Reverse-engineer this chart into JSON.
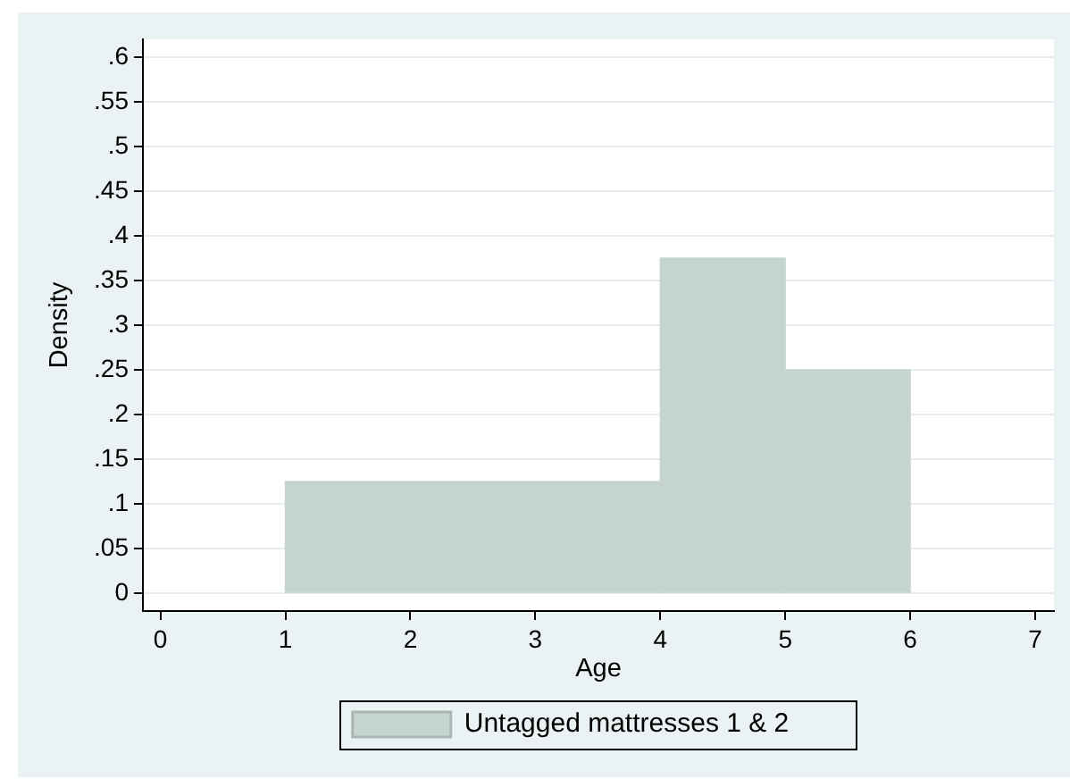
{
  "chart_data": {
    "type": "histogram",
    "xlabel": "Age",
    "ylabel": "Density",
    "bins": [
      1,
      4,
      5,
      6
    ],
    "series": [
      {
        "name": "Untagged mattresses 1 & 2",
        "color": "#c6d4cf",
        "values": [
          0.125,
          0.375,
          0.25
        ]
      }
    ],
    "xlim": [
      -0.14,
      7.15
    ],
    "ylim": [
      -0.02,
      0.62
    ],
    "xticks": [
      0,
      1,
      2,
      3,
      4,
      5,
      6,
      7
    ],
    "yticks": [
      0,
      {
        "value": 0.05,
        "label": ".05"
      },
      {
        "value": 0.1,
        "label": ".1"
      },
      {
        "value": 0.15,
        "label": ".15"
      },
      {
        "value": 0.2,
        "label": ".2"
      },
      {
        "value": 0.25,
        "label": ".25"
      },
      {
        "value": 0.3,
        "label": ".3"
      },
      {
        "value": 0.35,
        "label": ".35"
      },
      {
        "value": 0.4,
        "label": ".4"
      },
      {
        "value": 0.45,
        "label": ".45"
      },
      {
        "value": 0.5,
        "label": ".5"
      },
      {
        "value": 0.55,
        "label": ".55"
      },
      {
        "value": 0.6,
        "label": ".6"
      }
    ],
    "grid": "y",
    "legend": "bottom"
  }
}
